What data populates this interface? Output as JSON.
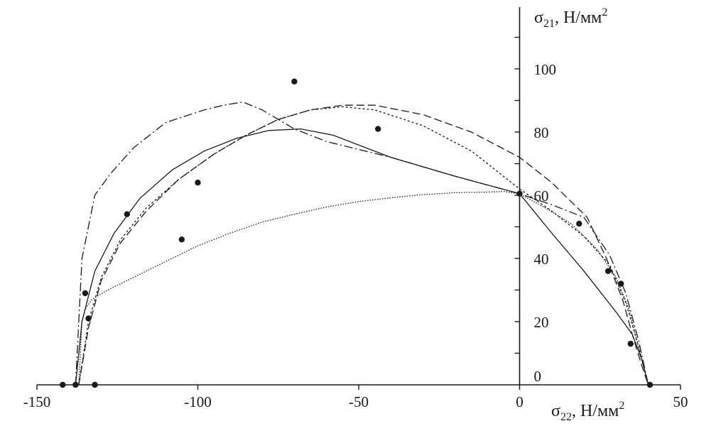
{
  "chart_data": {
    "type": "line",
    "title": "",
    "xlabel": "σ22, Н/мм2",
    "ylabel": "σ21, Н/мм2",
    "xlabel_parts": {
      "sym": "σ",
      "sub": "22",
      "unit": ", Н/мм",
      "sup": "2"
    },
    "ylabel_parts": {
      "sym": "σ",
      "sub": "21",
      "unit": ", Н/мм",
      "sup": "2"
    },
    "xlim": [
      -150,
      50
    ],
    "ylim": [
      0,
      120
    ],
    "x_ticks": [
      -150,
      -100,
      -50,
      0,
      50
    ],
    "x_tick_labels": [
      "-150",
      "-100",
      "-50",
      "0",
      "50"
    ],
    "y_ticks": [
      0,
      20,
      40,
      60,
      80,
      100
    ],
    "y_tick_labels": [
      "0",
      "20",
      "40",
      "60",
      "80",
      "100"
    ],
    "grid": false,
    "legend": "none",
    "points": [
      {
        "x": -142,
        "y": 0
      },
      {
        "x": -138,
        "y": 0
      },
      {
        "x": -132,
        "y": 0
      },
      {
        "x": -134,
        "y": 21
      },
      {
        "x": -135,
        "y": 29
      },
      {
        "x": -122,
        "y": 54
      },
      {
        "x": -105,
        "y": 46
      },
      {
        "x": -100,
        "y": 64
      },
      {
        "x": -70,
        "y": 96
      },
      {
        "x": -44,
        "y": 81
      },
      {
        "x": 0,
        "y": 60.5
      },
      {
        "x": 18.5,
        "y": 51
      },
      {
        "x": 27.5,
        "y": 36
      },
      {
        "x": 31.5,
        "y": 32
      },
      {
        "x": 34.5,
        "y": 13
      },
      {
        "x": 40.5,
        "y": 0
      }
    ],
    "series": [
      {
        "style": "solid",
        "x": [
          -138,
          -136,
          -132,
          -126,
          -118,
          -108,
          -98,
          -88,
          -78,
          -68,
          -58,
          -40,
          -20,
          0,
          10,
          20,
          30,
          35,
          38,
          40
        ],
        "y": [
          0,
          20,
          36,
          48,
          59,
          68,
          74,
          78,
          80.5,
          81,
          79,
          72,
          66,
          60.5,
          48,
          36,
          23,
          16,
          8,
          0
        ]
      },
      {
        "style": "dashed",
        "x": [
          -137,
          -134,
          -130,
          -124,
          -116,
          -106,
          -95,
          -85,
          -75,
          -65,
          -55,
          -45,
          -30,
          -15,
          0,
          10,
          21,
          27,
          32,
          35,
          38,
          40
        ],
        "y": [
          0,
          18,
          33,
          45,
          55,
          65,
          73,
          79,
          84,
          87,
          88.5,
          88.5,
          85.5,
          80,
          72,
          64,
          53,
          40,
          27,
          16,
          6,
          0
        ]
      },
      {
        "style": "dotted",
        "x": [
          -137,
          -134,
          -130,
          -124,
          -116,
          -106,
          -95,
          -85,
          -75,
          -65,
          -55,
          -45,
          -30,
          -15,
          0,
          10,
          20,
          28,
          33,
          37,
          40
        ],
        "y": [
          0,
          20,
          34,
          46,
          56,
          65,
          73,
          79,
          84,
          87,
          88,
          87,
          82,
          74,
          62,
          55,
          47,
          38,
          26,
          12,
          0
        ]
      },
      {
        "style": "dashdot",
        "x": [
          -138,
          -136,
          -132,
          -127,
          -120,
          -110,
          -98,
          -92,
          -86,
          -80,
          -70,
          -60,
          -40,
          -20,
          0,
          10,
          20,
          28,
          33,
          37,
          40
        ],
        "y": [
          0,
          40,
          60,
          67,
          75,
          83,
          87,
          88.5,
          89.5,
          87,
          81,
          77,
          72,
          66,
          60.5,
          57,
          53,
          41,
          29,
          14,
          0
        ]
      },
      {
        "style": "finedot",
        "x": [
          -137,
          -136,
          -135,
          -133,
          -128,
          -120,
          -110,
          -100,
          -90,
          -80,
          -70,
          -60,
          -50,
          -40,
          -30,
          -20,
          -10,
          -5,
          0,
          8,
          16,
          24,
          30,
          34,
          37,
          40
        ],
        "y": [
          0,
          20,
          24,
          27,
          30,
          34,
          39,
          44,
          48,
          51.5,
          54,
          56.3,
          58,
          59.2,
          60.2,
          60.8,
          61,
          61.2,
          60.5,
          56,
          51,
          43,
          34,
          24,
          12,
          0
        ]
      }
    ]
  }
}
